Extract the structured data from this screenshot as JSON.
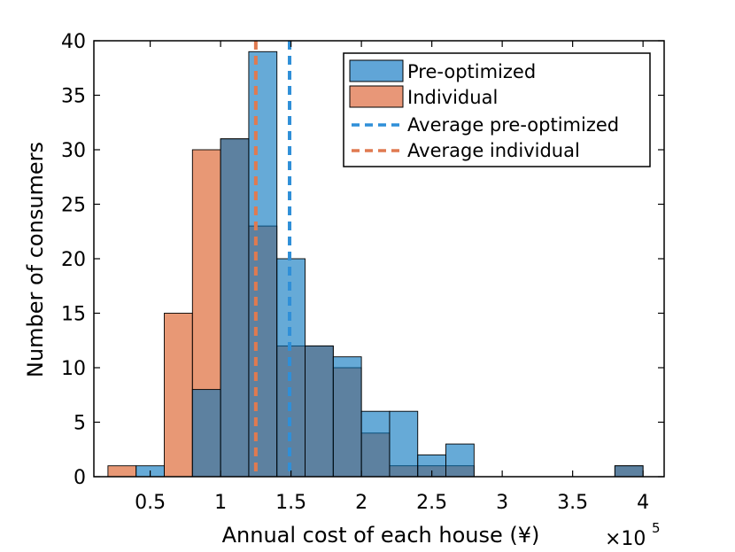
{
  "chart_data": {
    "type": "histogram",
    "xlabel": "Annual cost of each house (¥)",
    "ylabel": "Number of consumers",
    "x_multiplier": "×10",
    "x_multiplier_exp": "5",
    "xlim": [
      0.1,
      4.15
    ],
    "ylim": [
      0,
      40
    ],
    "xticks": [
      0.5,
      1,
      1.5,
      2,
      2.5,
      3,
      3.5,
      4
    ],
    "xtick_labels": [
      "0.5",
      "1",
      "1.5",
      "2",
      "2.5",
      "3",
      "3.5",
      "4"
    ],
    "yticks": [
      0,
      5,
      10,
      15,
      20,
      25,
      30,
      35,
      40
    ],
    "ytick_labels": [
      "0",
      "5",
      "10",
      "15",
      "20",
      "25",
      "30",
      "35",
      "40"
    ],
    "bin_width": 0.2,
    "series": [
      {
        "name": "Pre-optimized",
        "color": "#0072BD",
        "bin_starts": [
          0.4,
          0.6,
          0.8,
          1.0,
          1.2,
          1.4,
          1.6,
          1.8,
          2.0,
          2.2,
          2.4,
          2.6,
          2.8,
          3.0,
          3.2,
          3.4,
          3.6,
          3.8
        ],
        "values": [
          1,
          0,
          8,
          31,
          39,
          20,
          12,
          11,
          6,
          6,
          2,
          3,
          0,
          0,
          0,
          0,
          0,
          1
        ]
      },
      {
        "name": "Individual",
        "color": "#D95319",
        "bin_starts": [
          0.2,
          0.4,
          0.6,
          0.8,
          1.0,
          1.2,
          1.4,
          1.6,
          1.8,
          2.0,
          2.2,
          2.4,
          2.6,
          2.8,
          3.0,
          3.2,
          3.4,
          3.6,
          3.8
        ],
        "values": [
          1,
          0,
          15,
          30,
          31,
          23,
          12,
          12,
          10,
          4,
          1,
          1,
          1,
          0,
          0,
          0,
          0,
          0,
          1
        ]
      }
    ],
    "reference_lines": [
      {
        "name": "Average pre-optimized",
        "x": 1.49,
        "color": "#2F8FD8",
        "style": "dashed"
      },
      {
        "name": "Average individual",
        "x": 1.25,
        "color": "#E07A50",
        "style": "dashed"
      }
    ],
    "legend": {
      "position": "top-right",
      "entries": [
        "Pre-optimized",
        "Individual",
        "Average pre-optimized",
        "Average individual"
      ]
    }
  }
}
